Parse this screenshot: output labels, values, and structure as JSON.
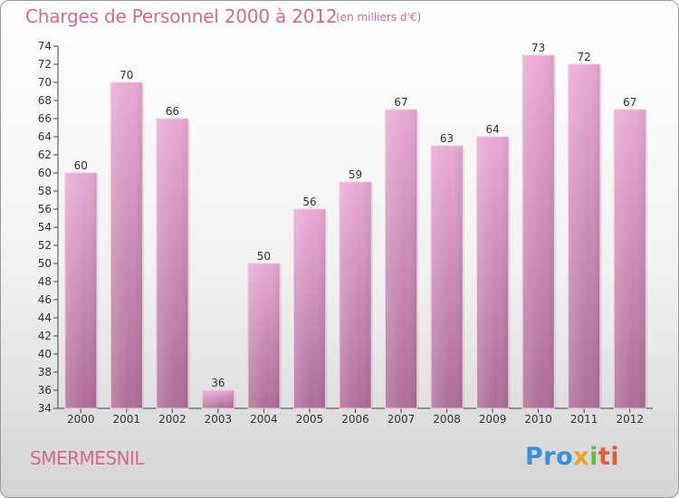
{
  "title": "Charges de Personnel 2000 à 2012",
  "subtitle": "(en milliers d'€)",
  "commune": "SMERMESNIL",
  "logo": {
    "p1": "Pro",
    "p2": "x",
    "p3": "i",
    "p4": "ti"
  },
  "colors": {
    "bar": "#d98fba",
    "accent": "#d56a8e",
    "axis": "#333333"
  },
  "chart_data": {
    "type": "bar",
    "title": "Charges de Personnel 2000 à 2012",
    "subtitle": "(en milliers d'€)",
    "categories": [
      "2000",
      "2001",
      "2002",
      "2003",
      "2004",
      "2005",
      "2006",
      "2007",
      "2008",
      "2009",
      "2010",
      "2011",
      "2012"
    ],
    "values": [
      60,
      70,
      66,
      36,
      50,
      56,
      59,
      67,
      63,
      64,
      73,
      72,
      67
    ],
    "ylim": [
      34,
      74
    ],
    "ytick_step": 2,
    "grid": false,
    "data_labels": true
  }
}
